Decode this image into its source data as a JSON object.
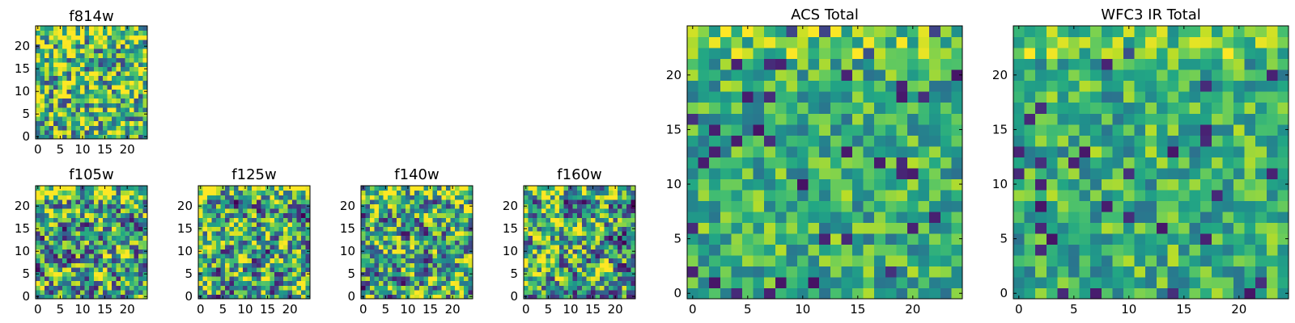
{
  "chart_data": [
    {
      "id": "f814w",
      "type": "heatmap",
      "title": "f814w",
      "grid_size": 25,
      "seed": 11,
      "style": "noisy",
      "xticks": [
        0,
        5,
        10,
        15,
        20
      ],
      "yticks": [
        0,
        5,
        10,
        15,
        20
      ],
      "xlim": [
        -0.5,
        24.5
      ],
      "ylim": [
        -0.5,
        24.5
      ],
      "colormap": "viridis"
    },
    {
      "id": "f105w",
      "type": "heatmap",
      "title": "f105w",
      "grid_size": 25,
      "seed": 23,
      "style": "smooth",
      "xticks": [
        0,
        5,
        10,
        15,
        20
      ],
      "yticks": [
        0,
        5,
        10,
        15,
        20
      ],
      "xlim": [
        -0.5,
        24.5
      ],
      "ylim": [
        -0.5,
        24.5
      ],
      "colormap": "viridis"
    },
    {
      "id": "f125w",
      "type": "heatmap",
      "title": "f125w",
      "grid_size": 25,
      "seed": 37,
      "style": "smooth",
      "xticks": [
        0,
        5,
        10,
        15,
        20
      ],
      "yticks": [
        0,
        5,
        10,
        15,
        20
      ],
      "xlim": [
        -0.5,
        24.5
      ],
      "ylim": [
        -0.5,
        24.5
      ],
      "colormap": "viridis"
    },
    {
      "id": "f140w",
      "type": "heatmap",
      "title": "f140w",
      "grid_size": 25,
      "seed": 41,
      "style": "smooth",
      "xticks": [
        0,
        5,
        10,
        15,
        20
      ],
      "yticks": [
        0,
        5,
        10,
        15,
        20
      ],
      "xlim": [
        -0.5,
        24.5
      ],
      "ylim": [
        -0.5,
        24.5
      ],
      "colormap": "viridis"
    },
    {
      "id": "f160w",
      "type": "heatmap",
      "title": "f160w",
      "grid_size": 25,
      "seed": 53,
      "style": "smooth",
      "xticks": [
        0,
        5,
        10,
        15,
        20
      ],
      "yticks": [
        0,
        5,
        10,
        15,
        20
      ],
      "xlim": [
        -0.5,
        24.5
      ],
      "ylim": [
        -0.5,
        24.5
      ],
      "colormap": "viridis"
    },
    {
      "id": "acs_total",
      "type": "heatmap",
      "title": "ACS Total",
      "grid_size": 25,
      "seed": 67,
      "style": "bright",
      "xticks": [
        0,
        5,
        10,
        15,
        20
      ],
      "yticks": [
        0,
        5,
        10,
        15,
        20
      ],
      "xlim": [
        -0.5,
        24.5
      ],
      "ylim": [
        -0.5,
        24.5
      ],
      "colormap": "viridis"
    },
    {
      "id": "wfc3_ir_total",
      "type": "heatmap",
      "title": "WFC3 IR Total",
      "grid_size": 25,
      "seed": 79,
      "style": "bright",
      "xticks": [
        0,
        5,
        10,
        15,
        20
      ],
      "yticks": [
        0,
        5,
        10,
        15,
        20
      ],
      "xlim": [
        -0.5,
        24.5
      ],
      "ylim": [
        -0.5,
        24.5
      ],
      "colormap": "viridis"
    }
  ]
}
